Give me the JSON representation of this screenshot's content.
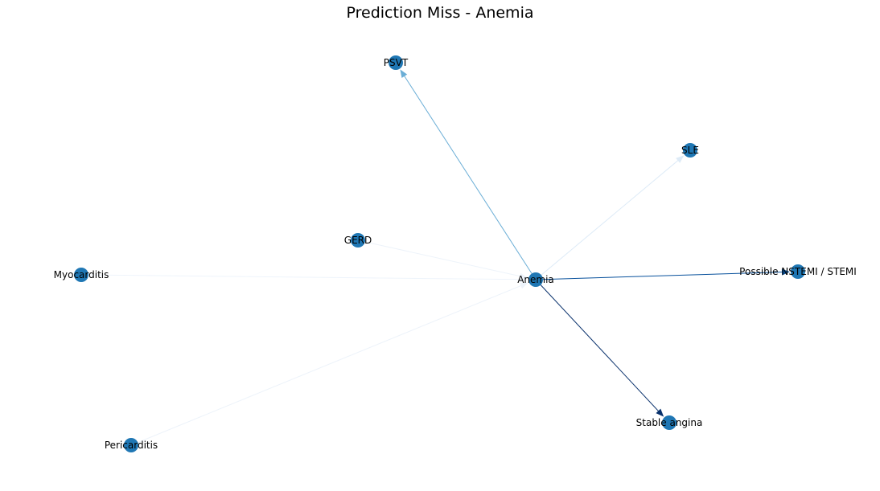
{
  "title": "Prediction Miss - Anemia",
  "node_color": "#1f77b4",
  "nodes": [
    {
      "id": "anemia",
      "label": "Anemia"
    },
    {
      "id": "psvt",
      "label": "PSVT"
    },
    {
      "id": "sle",
      "label": "SLE"
    },
    {
      "id": "gerd",
      "label": "GERD"
    },
    {
      "id": "myocarditis",
      "label": "Myocarditis"
    },
    {
      "id": "nstemi",
      "label": "Possible NSTEMI / STEMI"
    },
    {
      "id": "stable-angina",
      "label": "Stable angina"
    },
    {
      "id": "pericarditis",
      "label": "Pericarditis"
    }
  ],
  "edges": [
    {
      "source": "anemia",
      "target": "psvt",
      "color": "#6baed6"
    },
    {
      "source": "anemia",
      "target": "sle",
      "color": "#deebf7"
    },
    {
      "source": "gerd",
      "target": "anemia",
      "color": "#edf3fa"
    },
    {
      "source": "myocarditis",
      "target": "anemia",
      "color": "#eef4fb"
    },
    {
      "source": "anemia",
      "target": "nstemi",
      "color": "#08519c"
    },
    {
      "source": "anemia",
      "target": "stable-angina",
      "color": "#08306b"
    },
    {
      "source": "pericarditis",
      "target": "anemia",
      "color": "#edf3fa"
    }
  ]
}
